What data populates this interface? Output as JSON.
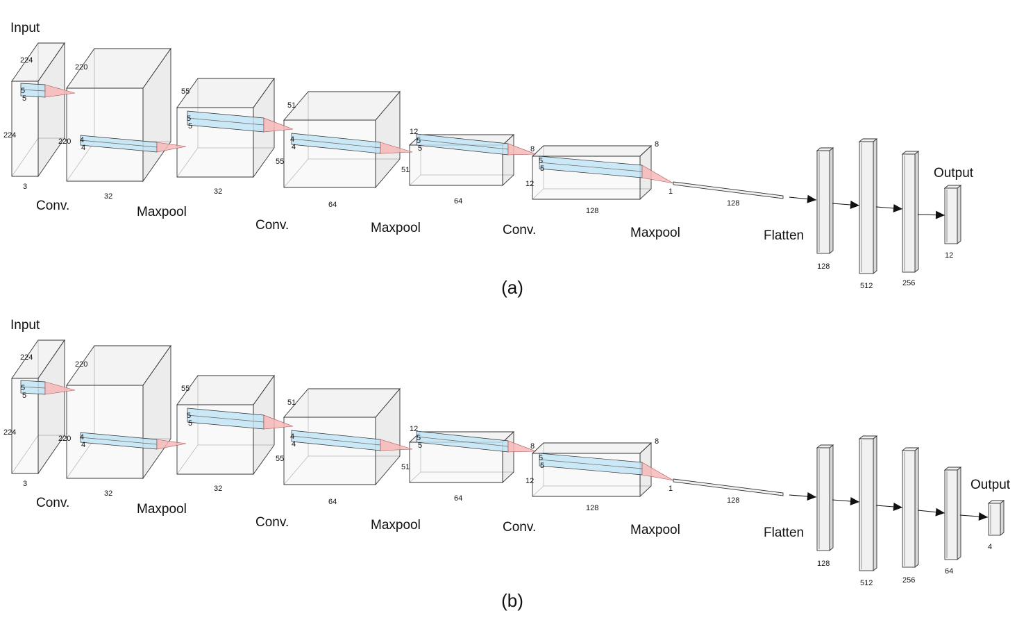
{
  "diagrams": [
    {
      "id": "a",
      "caption": "(a)",
      "input_label": "Input",
      "output_label": "Output",
      "flatten_label": "Flatten",
      "flatten_size": "128",
      "stages": [
        "Conv.",
        "Maxpool",
        "Conv.",
        "Maxpool",
        "Conv.",
        "Maxpool"
      ],
      "volumes": [
        {
          "h": "224",
          "w": "224",
          "d": "3",
          "k1": "5",
          "k2": "5"
        },
        {
          "h": "220",
          "w": "220",
          "d": "32",
          "k1": "4",
          "k2": "4"
        },
        {
          "h": "55",
          "w": "55",
          "d": "32",
          "k1": "5",
          "k2": "5"
        },
        {
          "h": "51",
          "w": "51",
          "d": "64",
          "k1": "4",
          "k2": "4"
        },
        {
          "h": "12",
          "w": "12",
          "d": "64",
          "k1": "5",
          "k2": "5"
        },
        {
          "h": "8",
          "w": "8",
          "d": "128",
          "k1": "5",
          "k2": "5"
        }
      ],
      "pooled": "1",
      "dense": [
        "128",
        "512",
        "256",
        "12"
      ]
    },
    {
      "id": "b",
      "caption": "(b)",
      "input_label": "Input",
      "output_label": "Output",
      "flatten_label": "Flatten",
      "flatten_size": "128",
      "stages": [
        "Conv.",
        "Maxpool",
        "Conv.",
        "Maxpool",
        "Conv.",
        "Maxpool"
      ],
      "volumes": [
        {
          "h": "224",
          "w": "224",
          "d": "3",
          "k1": "5",
          "k2": "5"
        },
        {
          "h": "220",
          "w": "220",
          "d": "32",
          "k1": "4",
          "k2": "4"
        },
        {
          "h": "55",
          "w": "55",
          "d": "32",
          "k1": "5",
          "k2": "5"
        },
        {
          "h": "51",
          "w": "51",
          "d": "64",
          "k1": "4",
          "k2": "4"
        },
        {
          "h": "12",
          "w": "12",
          "d": "64",
          "k1": "5",
          "k2": "5"
        },
        {
          "h": "8",
          "w": "8",
          "d": "128",
          "k1": "5",
          "k2": "5"
        }
      ],
      "pooled": "1",
      "dense": [
        "128",
        "512",
        "256",
        "64",
        "4"
      ]
    }
  ]
}
